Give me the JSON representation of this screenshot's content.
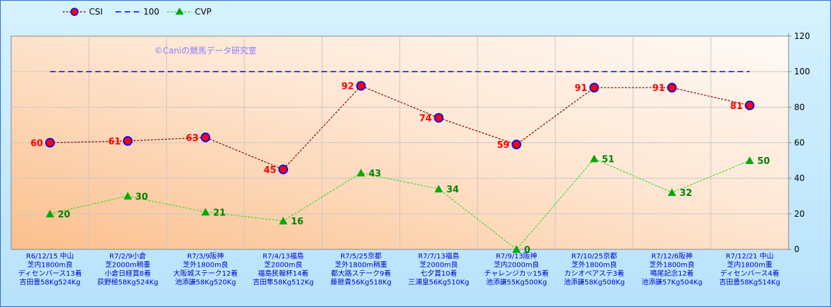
{
  "watermark": "©Caniの競馬データ研究室",
  "legend": [
    {
      "name": "CSI"
    },
    {
      "name": "100"
    },
    {
      "name": "CVP"
    }
  ],
  "colors": {
    "csi_line": "#800000",
    "csi_marker": "#ff0000",
    "csi_marker_edge": "#0000ff",
    "ref_line": "#0000ff",
    "cvp_line": "#33dd33",
    "cvp_marker": "#00aa00",
    "csi_label": "#ff0000",
    "cvp_label": "#008000"
  },
  "chart_data": {
    "type": "line",
    "ylim": [
      0,
      120
    ],
    "yticks": [
      0,
      20,
      40,
      60,
      80,
      100,
      120
    ],
    "grid": true,
    "legend_position": "top-left",
    "categories": [
      [
        "R6/12/15 中山",
        "芝内1800m良",
        "ディセンバース13着",
        "吉田豊58Kg524Kg"
      ],
      [
        "R7/2/9小倉",
        "芝2000m稍重",
        "小倉日経賞8着",
        "荻野極58Kg524Kg"
      ],
      [
        "R7/3/9阪神",
        "芝外1800m良",
        "大阪城ステーク12着",
        "池添謙58Kg520Kg"
      ],
      [
        "R7/4/13福島",
        "芝2000m良",
        "福島民報杯14着",
        "吉田隼58Kg512Kg"
      ],
      [
        "R7/5/25京都",
        "芝外1800m稍重",
        "都大路ステーク9着",
        "藤懸貴56Kg518Kg"
      ],
      [
        "R7/7/13福島",
        "芝2000m良",
        "七夕賞10着",
        "三浦皇56Kg510Kg"
      ],
      [
        "R7/9/13阪神",
        "芝内2000m良",
        "チャレンジカッ15着",
        "池添謙55Kg500Kg"
      ],
      [
        "R7/10/25京都",
        "芝外1800m良",
        "カシオペアステ3着",
        "池添謙58Kg508Kg"
      ],
      [
        "R7/12/6阪神",
        "芝外1800m良",
        "鳴尾記念12着",
        "池添謙57Kg504Kg"
      ],
      [
        "R7/12/21 中山",
        "芝内1800m重",
        "ディセンバース4着",
        "吉田豊58Kg514Kg"
      ]
    ],
    "series": [
      {
        "name": "CSI",
        "values": [
          60,
          61,
          63,
          45,
          92,
          74,
          59,
          91,
          91,
          81
        ]
      },
      {
        "name": "100",
        "values": [
          100,
          100,
          100,
          100,
          100,
          100,
          100,
          100,
          100,
          100
        ]
      },
      {
        "name": "CVP",
        "values": [
          20,
          30,
          21,
          16,
          43,
          34,
          0,
          51,
          32,
          50
        ]
      }
    ]
  }
}
